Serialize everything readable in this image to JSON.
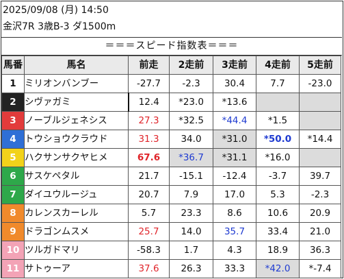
{
  "header": {
    "datetime": "2025/09/08 (月) 14:50",
    "race": "金沢7R 3歳B-3 ダ1500m"
  },
  "banner": "＝＝＝スピード指数表＝＝＝",
  "columns": [
    "馬番",
    "馬名",
    "前走",
    "2走前",
    "3走前",
    "4走前",
    "5走前"
  ],
  "colors": {
    "text_red": "#e0242a",
    "text_blue": "#1f3bd1",
    "highlight_gray": "#dcdcdc",
    "header_gray": "#eaeaea"
  },
  "rows": [
    {
      "num": "1",
      "name": "ミリオンバンブー",
      "num_bg": "#ffffff",
      "num_fg": "#111111",
      "values": [
        {
          "t": "-27.7"
        },
        {
          "t": "-2.3"
        },
        {
          "t": "30.4"
        },
        {
          "t": "7.7"
        },
        {
          "t": "-23.0"
        }
      ]
    },
    {
      "num": "2",
      "name": "シヴァガミ",
      "num_bg": "#222222",
      "num_fg": "#ffffff",
      "values": [
        {
          "t": "12.4"
        },
        {
          "t": "*23.0"
        },
        {
          "t": "*13.6"
        },
        {
          "t": "",
          "blank": true
        },
        {
          "t": "",
          "blank": true
        }
      ]
    },
    {
      "num": "3",
      "name": "ノーブルジェネシス",
      "num_bg": "#e23b3b",
      "num_fg": "#ffffff",
      "values": [
        {
          "t": "27.3",
          "color": "red"
        },
        {
          "t": "*32.5"
        },
        {
          "t": "*44.4",
          "color": "blue"
        },
        {
          "t": "*1.5"
        },
        {
          "t": "",
          "blank": true
        }
      ]
    },
    {
      "num": "4",
      "name": "トウショウクラウド",
      "num_bg": "#2f6fd6",
      "num_fg": "#ffffff",
      "values": [
        {
          "t": "31.3",
          "color": "red"
        },
        {
          "t": "34.0"
        },
        {
          "t": "*31.0",
          "boxed": true
        },
        {
          "t": "*50.0",
          "color": "blue",
          "bold": true
        },
        {
          "t": "*14.4"
        }
      ]
    },
    {
      "num": "5",
      "name": "ハクサンサクヤヒメ",
      "num_bg": "#f2d21a",
      "num_fg": "#ffffff",
      "values": [
        {
          "t": "67.6",
          "color": "red",
          "bold": true
        },
        {
          "t": "*36.7",
          "color": "blue",
          "boxed": true
        },
        {
          "t": "*31.1",
          "boxed": true
        },
        {
          "t": "*16.0"
        },
        {
          "t": "",
          "blank": true
        }
      ]
    },
    {
      "num": "6",
      "name": "サスケペタル",
      "num_bg": "#2ea84a",
      "num_fg": "#ffffff",
      "values": [
        {
          "t": "21.7"
        },
        {
          "t": "-15.1"
        },
        {
          "t": "-12.4"
        },
        {
          "t": "-3.7"
        },
        {
          "t": "39.7"
        }
      ]
    },
    {
      "num": "7",
      "name": "ダイユウルージュ",
      "num_bg": "#2ea84a",
      "num_fg": "#ffffff",
      "values": [
        {
          "t": "20.7"
        },
        {
          "t": "7.9"
        },
        {
          "t": "17.0"
        },
        {
          "t": "5.3"
        },
        {
          "t": "-2.3"
        }
      ]
    },
    {
      "num": "8",
      "name": "カレンスカーレル",
      "num_bg": "#f08a2c",
      "num_fg": "#ffffff",
      "values": [
        {
          "t": "5.7"
        },
        {
          "t": "23.3"
        },
        {
          "t": "8.6"
        },
        {
          "t": "10.6"
        },
        {
          "t": "20.9"
        }
      ]
    },
    {
      "num": "9",
      "name": "ドラゴンムスメ",
      "num_bg": "#f08a2c",
      "num_fg": "#ffffff",
      "values": [
        {
          "t": "25.7",
          "color": "red"
        },
        {
          "t": "14.0"
        },
        {
          "t": "35.7",
          "color": "blue"
        },
        {
          "t": "33.4"
        },
        {
          "t": "21.0"
        }
      ]
    },
    {
      "num": "10",
      "name": "ツルガドマリ",
      "num_bg": "#f3a3b6",
      "num_fg": "#ffffff",
      "values": [
        {
          "t": "-58.3"
        },
        {
          "t": "1.7"
        },
        {
          "t": "4.3"
        },
        {
          "t": "18.9"
        },
        {
          "t": "36.3"
        }
      ]
    },
    {
      "num": "11",
      "name": "サトゥーア",
      "num_bg": "#f3a3b6",
      "num_fg": "#ffffff",
      "values": [
        {
          "t": "37.6",
          "color": "red"
        },
        {
          "t": "26.3"
        },
        {
          "t": "33.3"
        },
        {
          "t": "*42.0",
          "color": "blue",
          "boxed": true
        },
        {
          "t": "*-7.4"
        }
      ]
    }
  ]
}
